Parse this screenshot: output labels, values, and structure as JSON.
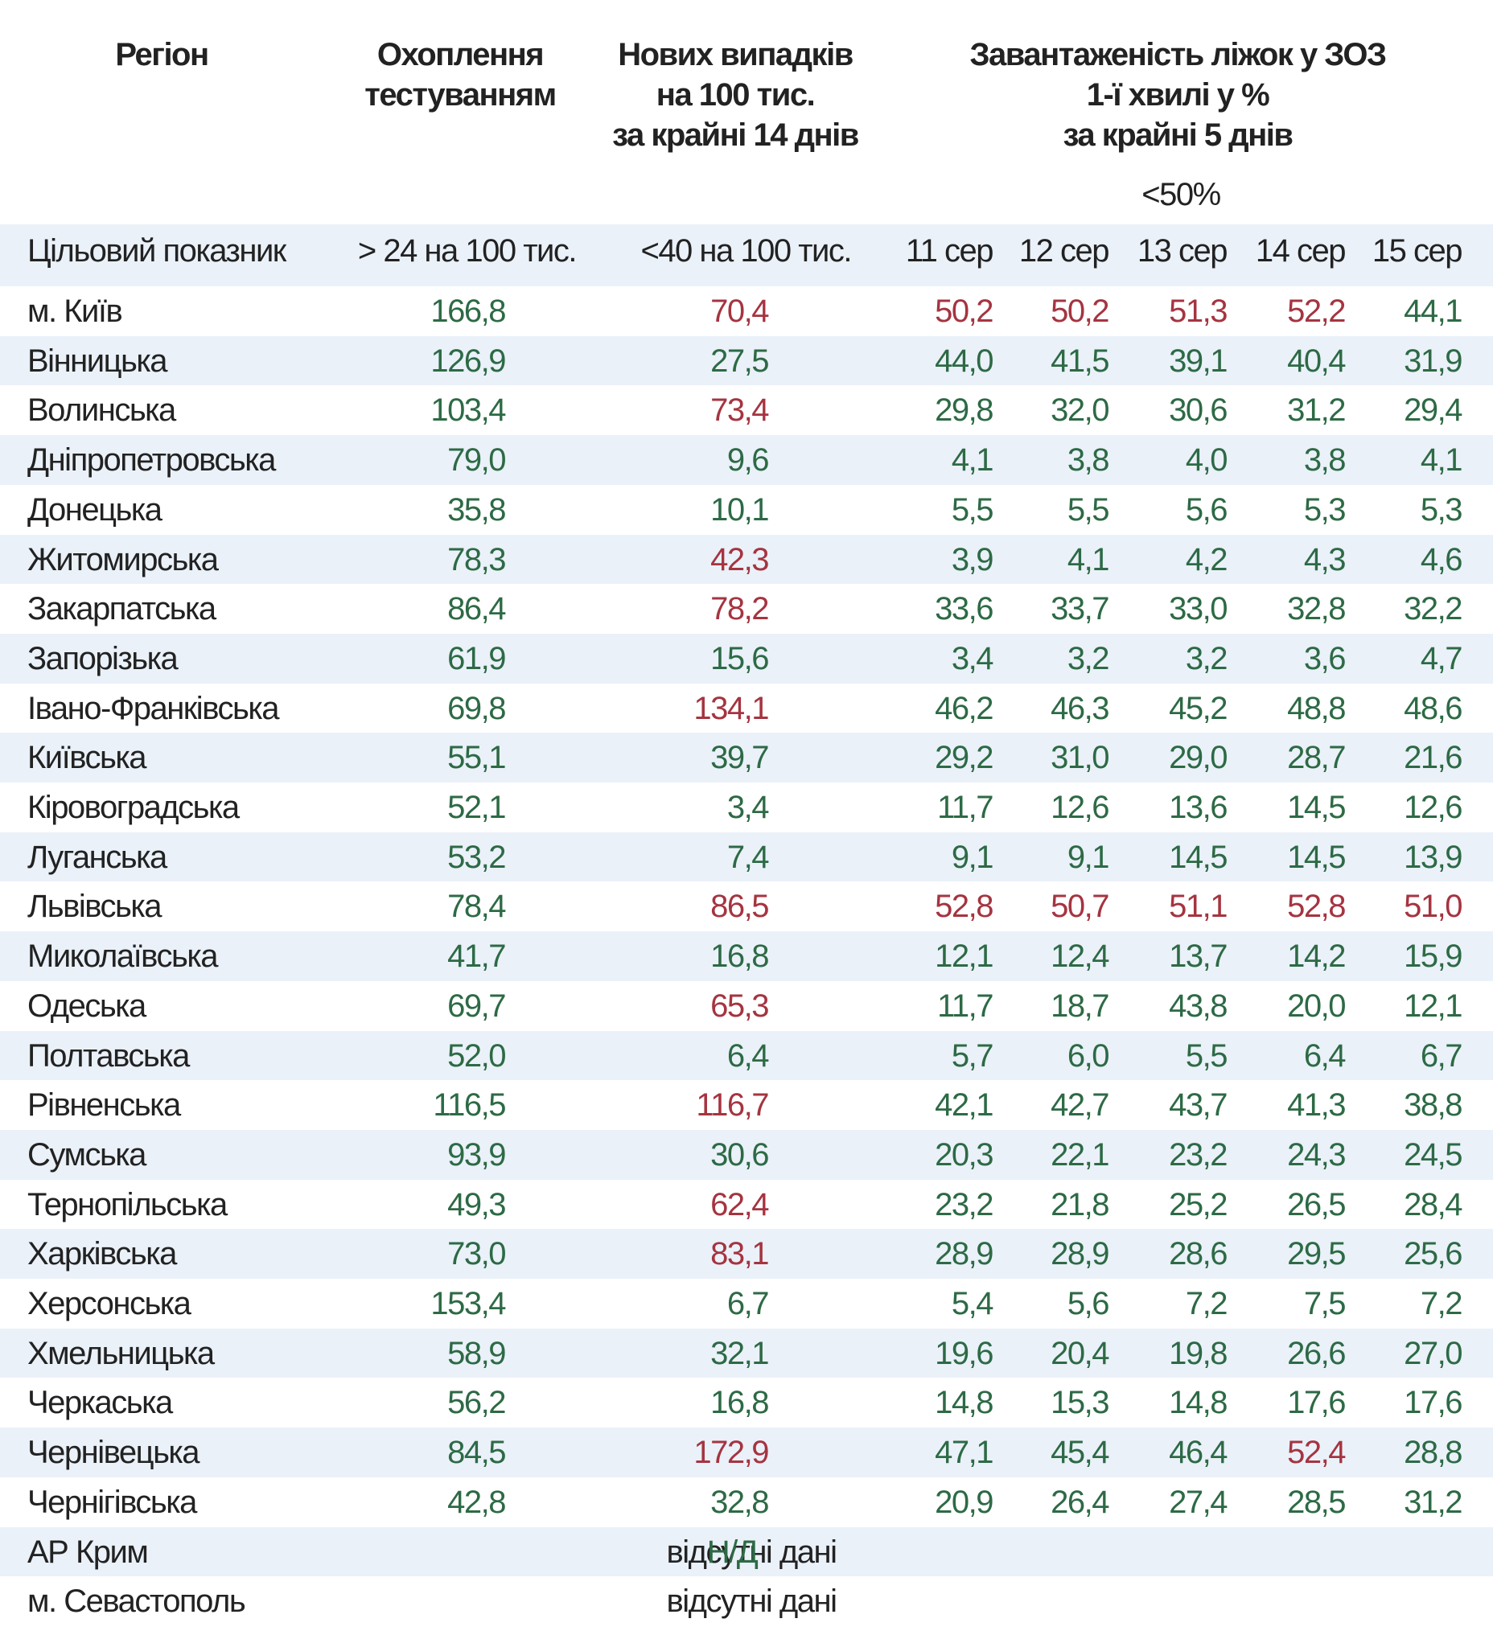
{
  "header": {
    "region": "Регіон",
    "coverage": [
      "Охоплення",
      "тестуванням"
    ],
    "new_cases": [
      "Нових випадків",
      "на 100 тис.",
      "за крайні 14 днів"
    ],
    "beds": [
      "Завантаженість ліжок у ЗОЗ",
      "1-ї хвилі у %",
      "за крайні 5 днів"
    ],
    "beds_target": "<50%",
    "dates": [
      "11 сер",
      "12 сер",
      "13 сер",
      "14 сер",
      "15 сер"
    ]
  },
  "target": {
    "label": "Цільовий показник",
    "coverage": "> 24 на 100 тис.",
    "new_cases": "<40 на 100 тис."
  },
  "rows": [
    {
      "region": "м. Київ",
      "cells": [
        "166,8",
        "70,4",
        "50,2",
        "50,2",
        "51,3",
        "52,2",
        "44,1"
      ],
      "colors": [
        "#2d6a45",
        "#a53440",
        "#a53440",
        "#a53440",
        "#a53440",
        "#a53440",
        "#2d6a45"
      ]
    },
    {
      "region": "Вінницька",
      "cells": [
        "126,9",
        "27,5",
        "44,0",
        "41,5",
        "39,1",
        "40,4",
        "31,9"
      ],
      "colors": [
        "#2d6a45",
        "#2d6a45",
        "#2d6a45",
        "#2d6a45",
        "#2d6a45",
        "#2d6a45",
        "#2d6a45"
      ]
    },
    {
      "region": "Волинська",
      "cells": [
        "103,4",
        "73,4",
        "29,8",
        "32,0",
        "30,6",
        "31,2",
        "29,4"
      ],
      "colors": [
        "#2d6a45",
        "#a53440",
        "#2d6a45",
        "#2d6a45",
        "#2d6a45",
        "#2d6a45",
        "#2d6a45"
      ]
    },
    {
      "region": "Дніпропетровська",
      "cells": [
        "79,0",
        "9,6",
        "4,1",
        "3,8",
        "4,0",
        "3,8",
        "4,1"
      ],
      "colors": [
        "#2d6a45",
        "#2d6a45",
        "#2d6a45",
        "#2d6a45",
        "#2d6a45",
        "#2d6a45",
        "#2d6a45"
      ]
    },
    {
      "region": "Донецька",
      "cells": [
        "35,8",
        "10,1",
        "5,5",
        "5,5",
        "5,6",
        "5,3",
        "5,3"
      ],
      "colors": [
        "#2d6a45",
        "#2d6a45",
        "#2d6a45",
        "#2d6a45",
        "#2d6a45",
        "#2d6a45",
        "#2d6a45"
      ]
    },
    {
      "region": "Житомирська",
      "cells": [
        "78,3",
        "42,3",
        "3,9",
        "4,1",
        "4,2",
        "4,3",
        "4,6"
      ],
      "colors": [
        "#2d6a45",
        "#a53440",
        "#2d6a45",
        "#2d6a45",
        "#2d6a45",
        "#2d6a45",
        "#2d6a45"
      ]
    },
    {
      "region": "Закарпатська",
      "cells": [
        "86,4",
        "78,2",
        "33,6",
        "33,7",
        "33,0",
        "32,8",
        "32,2"
      ],
      "colors": [
        "#2d6a45",
        "#a53440",
        "#2d6a45",
        "#2d6a45",
        "#2d6a45",
        "#2d6a45",
        "#2d6a45"
      ]
    },
    {
      "region": "Запорізька",
      "cells": [
        "61,9",
        "15,6",
        "3,4",
        "3,2",
        "3,2",
        "3,6",
        "4,7"
      ],
      "colors": [
        "#2d6a45",
        "#2d6a45",
        "#2d6a45",
        "#2d6a45",
        "#2d6a45",
        "#2d6a45",
        "#2d6a45"
      ]
    },
    {
      "region": "Івано-Франківська",
      "cells": [
        "69,8",
        "134,1",
        "46,2",
        "46,3",
        "45,2",
        "48,8",
        "48,6"
      ],
      "colors": [
        "#2d6a45",
        "#a53440",
        "#2d6a45",
        "#2d6a45",
        "#2d6a45",
        "#2d6a45",
        "#2d6a45"
      ]
    },
    {
      "region": "Київська",
      "cells": [
        "55,1",
        "39,7",
        "29,2",
        "31,0",
        "29,0",
        "28,7",
        "21,6"
      ],
      "colors": [
        "#2d6a45",
        "#2d6a45",
        "#2d6a45",
        "#2d6a45",
        "#2d6a45",
        "#2d6a45",
        "#2d6a45"
      ]
    },
    {
      "region": "Кіровоградська",
      "cells": [
        "52,1",
        "3,4",
        "11,7",
        "12,6",
        "13,6",
        "14,5",
        "12,6"
      ],
      "colors": [
        "#2d6a45",
        "#2d6a45",
        "#2d6a45",
        "#2d6a45",
        "#2d6a45",
        "#2d6a45",
        "#2d6a45"
      ]
    },
    {
      "region": "Луганська",
      "cells": [
        "53,2",
        "7,4",
        "9,1",
        "9,1",
        "14,5",
        "14,5",
        "13,9"
      ],
      "colors": [
        "#2d6a45",
        "#2d6a45",
        "#2d6a45",
        "#2d6a45",
        "#2d6a45",
        "#2d6a45",
        "#2d6a45"
      ]
    },
    {
      "region": "Львівська",
      "cells": [
        "78,4",
        "86,5",
        "52,8",
        "50,7",
        "51,1",
        "52,8",
        "51,0"
      ],
      "colors": [
        "#2d6a45",
        "#a53440",
        "#a53440",
        "#a53440",
        "#a53440",
        "#a53440",
        "#a53440"
      ]
    },
    {
      "region": "Миколаївська",
      "cells": [
        "41,7",
        "16,8",
        "12,1",
        "12,4",
        "13,7",
        "14,2",
        "15,9"
      ],
      "colors": [
        "#2d6a45",
        "#2d6a45",
        "#2d6a45",
        "#2d6a45",
        "#2d6a45",
        "#2d6a45",
        "#2d6a45"
      ]
    },
    {
      "region": "Одеська",
      "cells": [
        "69,7",
        "65,3",
        "11,7",
        "18,7",
        "43,8",
        "20,0",
        "12,1"
      ],
      "colors": [
        "#2d6a45",
        "#a53440",
        "#2d6a45",
        "#2d6a45",
        "#2d6a45",
        "#2d6a45",
        "#2d6a45"
      ]
    },
    {
      "region": "Полтавська",
      "cells": [
        "52,0",
        "6,4",
        "5,7",
        "6,0",
        "5,5",
        "6,4",
        "6,7"
      ],
      "colors": [
        "#2d6a45",
        "#2d6a45",
        "#2d6a45",
        "#2d6a45",
        "#2d6a45",
        "#2d6a45",
        "#2d6a45"
      ]
    },
    {
      "region": "Рівненська",
      "cells": [
        "116,5",
        "116,7",
        "42,1",
        "42,7",
        "43,7",
        "41,3",
        "38,8"
      ],
      "colors": [
        "#2d6a45",
        "#a53440",
        "#2d6a45",
        "#2d6a45",
        "#2d6a45",
        "#2d6a45",
        "#2d6a45"
      ]
    },
    {
      "region": "Сумська",
      "cells": [
        "93,9",
        "30,6",
        "20,3",
        "22,1",
        "23,2",
        "24,3",
        "24,5"
      ],
      "colors": [
        "#2d6a45",
        "#2d6a45",
        "#2d6a45",
        "#2d6a45",
        "#2d6a45",
        "#2d6a45",
        "#2d6a45"
      ]
    },
    {
      "region": "Тернопільська",
      "cells": [
        "49,3",
        "62,4",
        "23,2",
        "21,8",
        "25,2",
        "26,5",
        "28,4"
      ],
      "colors": [
        "#2d6a45",
        "#a53440",
        "#2d6a45",
        "#2d6a45",
        "#2d6a45",
        "#2d6a45",
        "#2d6a45"
      ]
    },
    {
      "region": "Харківська",
      "cells": [
        "73,0",
        "83,1",
        "28,9",
        "28,9",
        "28,6",
        "29,5",
        "25,6"
      ],
      "colors": [
        "#2d6a45",
        "#a53440",
        "#2d6a45",
        "#2d6a45",
        "#2d6a45",
        "#2d6a45",
        "#2d6a45"
      ]
    },
    {
      "region": "Херсонська",
      "cells": [
        "153,4",
        "6,7",
        "5,4",
        "5,6",
        "7,2",
        "7,5",
        "7,2"
      ],
      "colors": [
        "#2d6a45",
        "#2d6a45",
        "#2d6a45",
        "#2d6a45",
        "#2d6a45",
        "#2d6a45",
        "#2d6a45"
      ]
    },
    {
      "region": "Хмельницька",
      "cells": [
        "58,9",
        "32,1",
        "19,6",
        "20,4",
        "19,8",
        "26,6",
        "27,0"
      ],
      "colors": [
        "#2d6a45",
        "#2d6a45",
        "#2d6a45",
        "#2d6a45",
        "#2d6a45",
        "#2d6a45",
        "#2d6a45"
      ]
    },
    {
      "region": "Черкаська",
      "cells": [
        "56,2",
        "16,8",
        "14,8",
        "15,3",
        "14,8",
        "17,6",
        "17,6"
      ],
      "colors": [
        "#2d6a45",
        "#2d6a45",
        "#2d6a45",
        "#2d6a45",
        "#2d6a45",
        "#2d6a45",
        "#2d6a45"
      ]
    },
    {
      "region": "Чернівецька",
      "cells": [
        "84,5",
        "172,9",
        "47,1",
        "45,4",
        "46,4",
        "52,4",
        "28,8"
      ],
      "colors": [
        "#2d6a45",
        "#a53440",
        "#2d6a45",
        "#2d6a45",
        "#2d6a45",
        "#a53440",
        "#2d6a45"
      ]
    },
    {
      "region": "Чернігівська",
      "cells": [
        "42,8",
        "32,8",
        "20,9",
        "26,4",
        "27,4",
        "28,5",
        "31,2"
      ],
      "colors": [
        "#2d6a45",
        "#2d6a45",
        "#2d6a45",
        "#2d6a45",
        "#2d6a45",
        "#2d6a45",
        "#2d6a45"
      ]
    },
    {
      "region": "АР Крим",
      "note": "відсутні дані",
      "overlay": "Н/Д",
      "overlay_color": "#2d6a45"
    },
    {
      "region": "м. Севастополь",
      "note": "відсутні дані"
    }
  ]
}
